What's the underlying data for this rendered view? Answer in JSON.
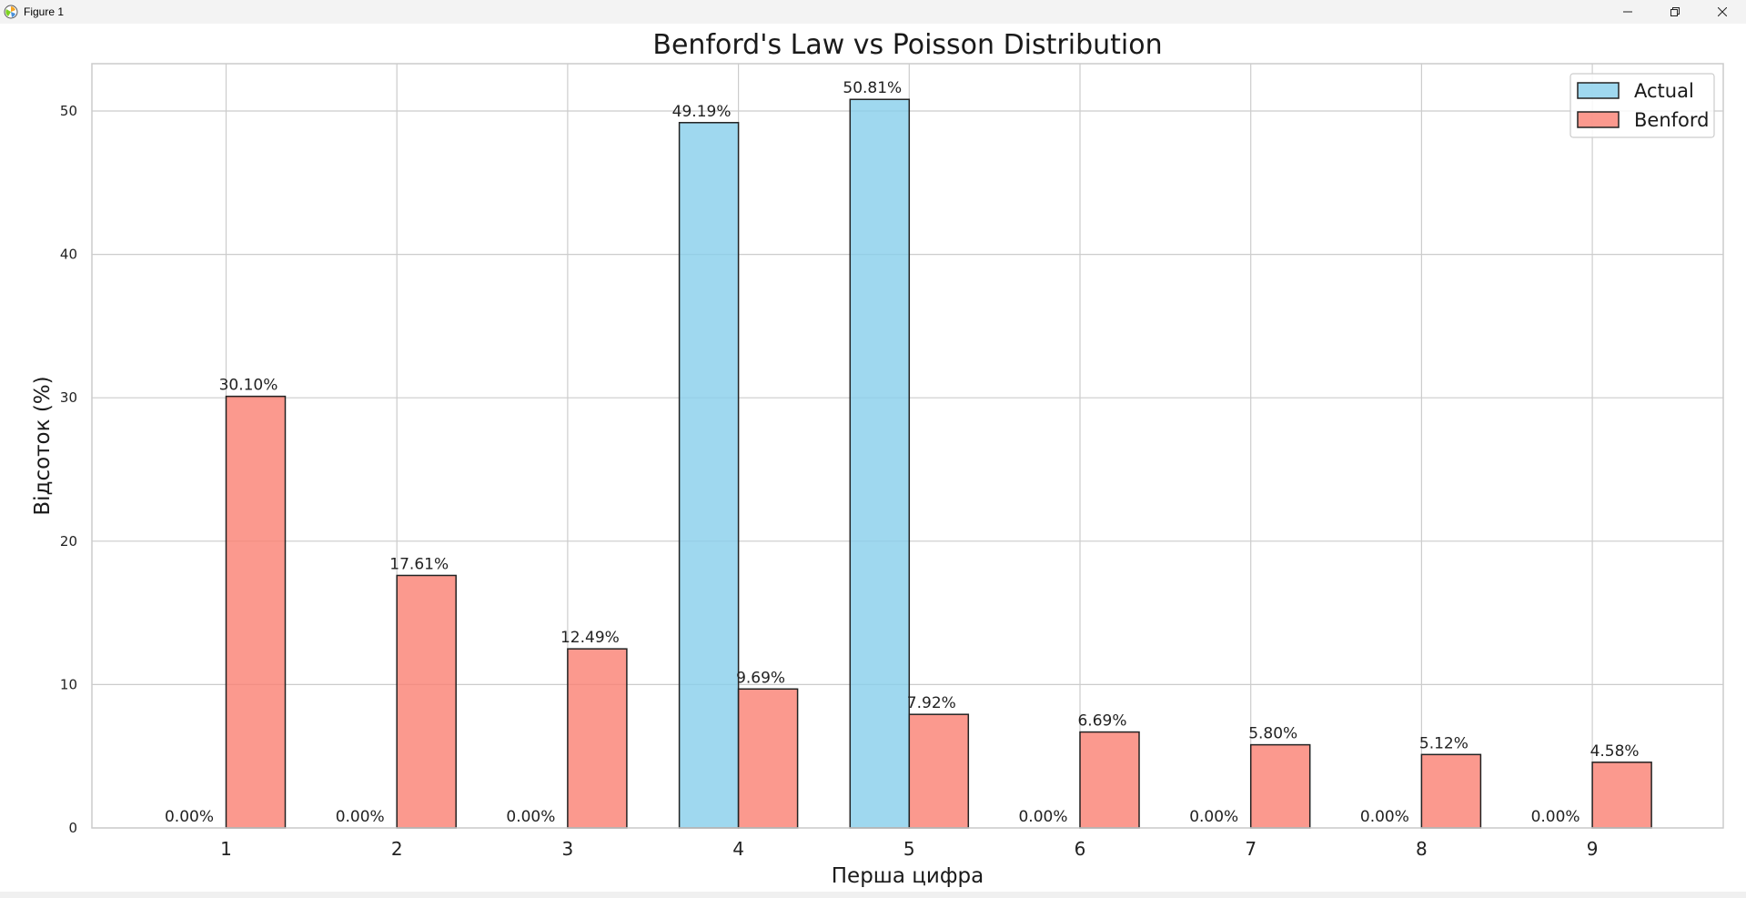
{
  "window": {
    "title": "Figure 1",
    "minimize_icon": "minimize-icon",
    "maximize_icon": "restore-icon",
    "close_icon": "close-icon"
  },
  "chart_data": {
    "type": "bar",
    "title": "Benford's Law vs Poisson Distribution",
    "xlabel": "Перша цифра",
    "ylabel": "Відсоток (%)",
    "categories": [
      "1",
      "2",
      "3",
      "4",
      "5",
      "6",
      "7",
      "8",
      "9"
    ],
    "ylim": [
      0,
      53.3
    ],
    "yticks": [
      0,
      10,
      20,
      30,
      40,
      50
    ],
    "grid": true,
    "legend_position": "top-right",
    "series": [
      {
        "name": "Actual",
        "color": "#87ceeb",
        "values": [
          0,
          0,
          0,
          49.19,
          50.81,
          0,
          0,
          0,
          0
        ],
        "labels": [
          "0.00%",
          "0.00%",
          "0.00%",
          "49.19%",
          "50.81%",
          "0.00%",
          "0.00%",
          "0.00%",
          "0.00%"
        ]
      },
      {
        "name": "Benford",
        "color": "#fa8072",
        "values": [
          30.1,
          17.61,
          12.49,
          9.69,
          7.92,
          6.69,
          5.8,
          5.12,
          4.58
        ],
        "labels": [
          "30.10%",
          "17.61%",
          "12.49%",
          "9.69%",
          "7.92%",
          "6.69%",
          "5.80%",
          "5.12%",
          "4.58%"
        ]
      }
    ]
  }
}
